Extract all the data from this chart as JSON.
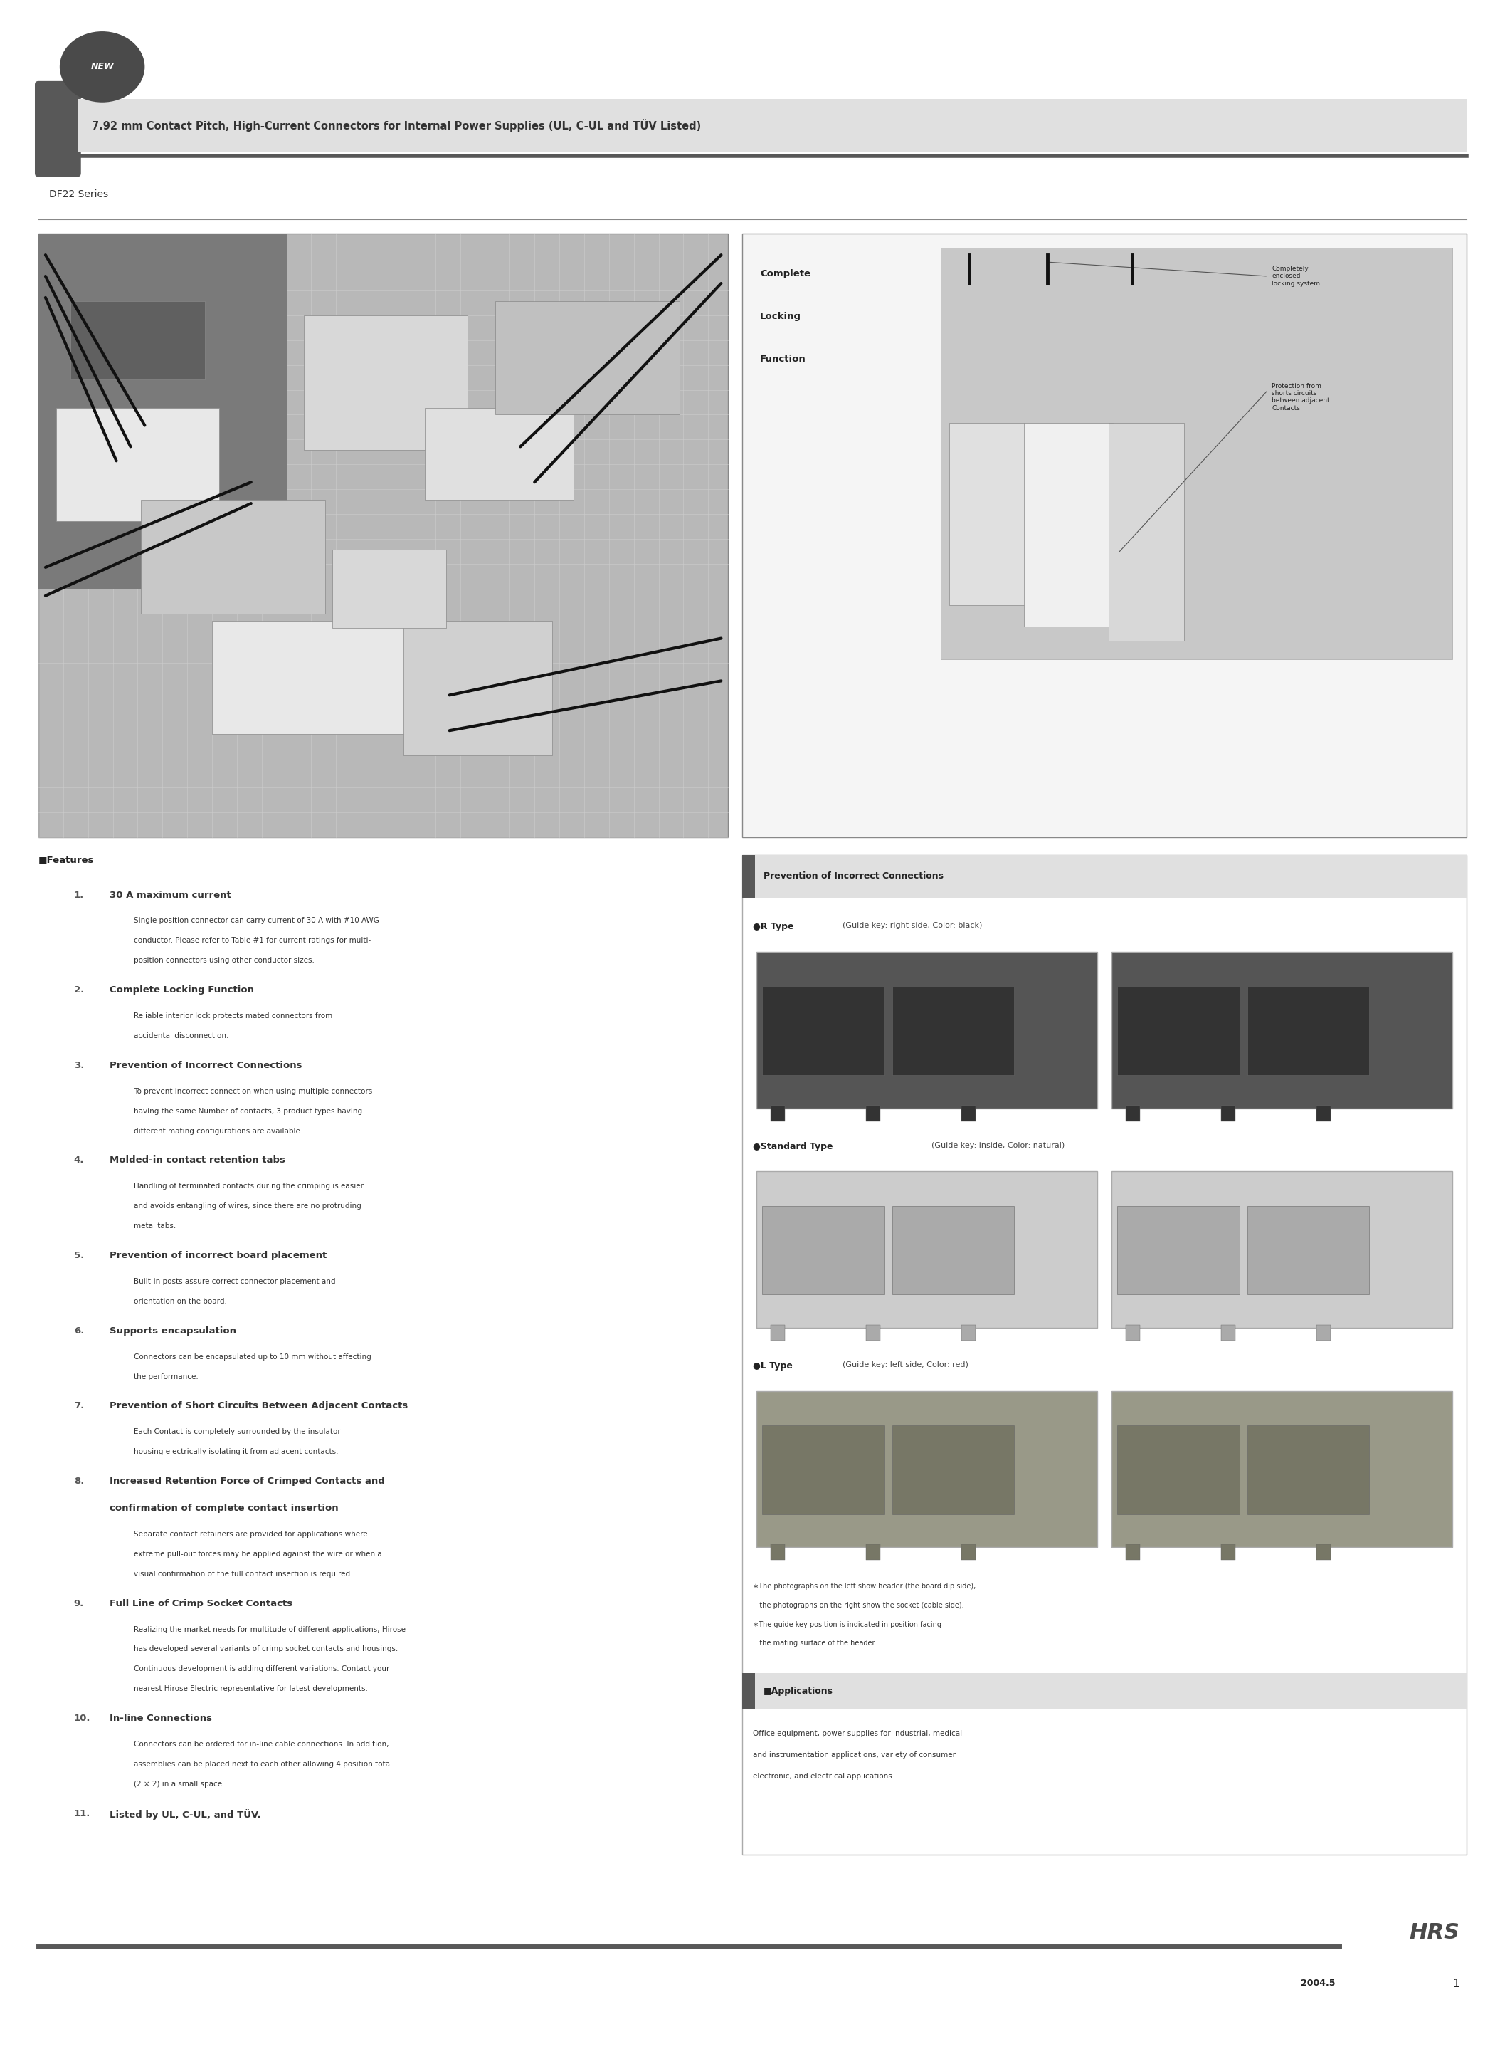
{
  "page_width": 21.15,
  "page_height": 28.78,
  "bg_color": "#ffffff",
  "title_text": "7.92 mm Contact Pitch, High-Current Connectors for Internal Power Supplies (UL, C-UL and TÜV Listed)",
  "series_text": "DF22 Series",
  "features_header": "■Features",
  "features": [
    {
      "num": "1.",
      "bold": "30 A maximum current",
      "body": "Single position connector can carry current of 30 A with #10 AWG\nconductor. Please refer to Table #1 for current ratings for multi-\nposition connectors using other conductor sizes."
    },
    {
      "num": "2.",
      "bold": "Complete Locking Function",
      "body": "Reliable interior lock protects mated connectors from\naccidental disconnection."
    },
    {
      "num": "3.",
      "bold": "Prevention of Incorrect Connections",
      "body": "To prevent incorrect connection when using multiple connectors\nhaving the same Number of contacts, 3 product types having\ndifferent mating configurations are available."
    },
    {
      "num": "4.",
      "bold": "Molded-in contact retention tabs",
      "body": "Handling of terminated contacts during the crimping is easier\nand avoids entangling of wires, since there are no protruding\nmetal tabs."
    },
    {
      "num": "5.",
      "bold": "Prevention of incorrect board placement",
      "body": "Built-in posts assure correct connector placement and\norientation on the board."
    },
    {
      "num": "6.",
      "bold": "Supports encapsulation",
      "body": "Connectors can be encapsulated up to 10 mm without affecting\nthe performance."
    },
    {
      "num": "7.",
      "bold": "Prevention of Short Circuits Between Adjacent Contacts",
      "body": "Each Contact is completely surrounded by the insulator\nhousing electrically isolating it from adjacent contacts."
    },
    {
      "num": "8.",
      "bold": "Increased Retention Force of Crimped Contacts and\nconfirmation of complete contact insertion",
      "body": "Separate contact retainers are provided for applications where\nextreme pull-out forces may be applied against the wire or when a\nvisual confirmation of the full contact insertion is required."
    },
    {
      "num": "9.",
      "bold": "Full Line of Crimp Socket Contacts",
      "body": "Realizing the market needs for multitude of different applications, Hirose\nhas developed several variants of crimp socket contacts and housings.\nContinuous development is adding different variations. Contact your\nnearest Hirose Electric representative for latest developments."
    },
    {
      "num": "10.",
      "bold": "In-line Connections",
      "body": "Connectors can be ordered for in-line cable connections. In addition,\nassemblies can be placed next to each other allowing 4 position total\n(2 × 2) in a small space."
    },
    {
      "num": "11.",
      "bold": "Listed by UL, C-UL, and TÜV.",
      "body": ""
    }
  ],
  "complete_locking": "Complete\nLocking\nFunction",
  "note1_title": "Completely\nenclosed\nlocking system",
  "note2_title": "Protection from\nshorts circuits\nbetween adjacent\nContacts",
  "incorrect_header": "Prevention of Incorrect Connections",
  "r_type_bold": "●R Type",
  "r_type_normal": "(Guide key: right side, Color: black)",
  "std_type_bold": "●Standard Type",
  "std_type_normal": "(Guide key: inside, Color: natural)",
  "l_type_bold": "●L Type",
  "l_type_normal": "(Guide key: left side, Color: red)",
  "photo_note1": "∗The photographs on the left show header (the board dip side),",
  "photo_note1b": "   the photographs on the right show the socket (cable side).",
  "photo_note2": "∗The guide key position is indicated in position facing",
  "photo_note2b": "   the mating surface of the header.",
  "applications_header": "■Applications",
  "applications_body": "Office equipment, power supplies for industrial, medical\nand instrumentation applications, variety of consumer\nelectronic, and electrical applications.",
  "footer_year": "2004.5",
  "footer_page": "1",
  "dark_color": "#4a4a4a",
  "header_bar_color": "#585858",
  "accent_color": "#585858"
}
